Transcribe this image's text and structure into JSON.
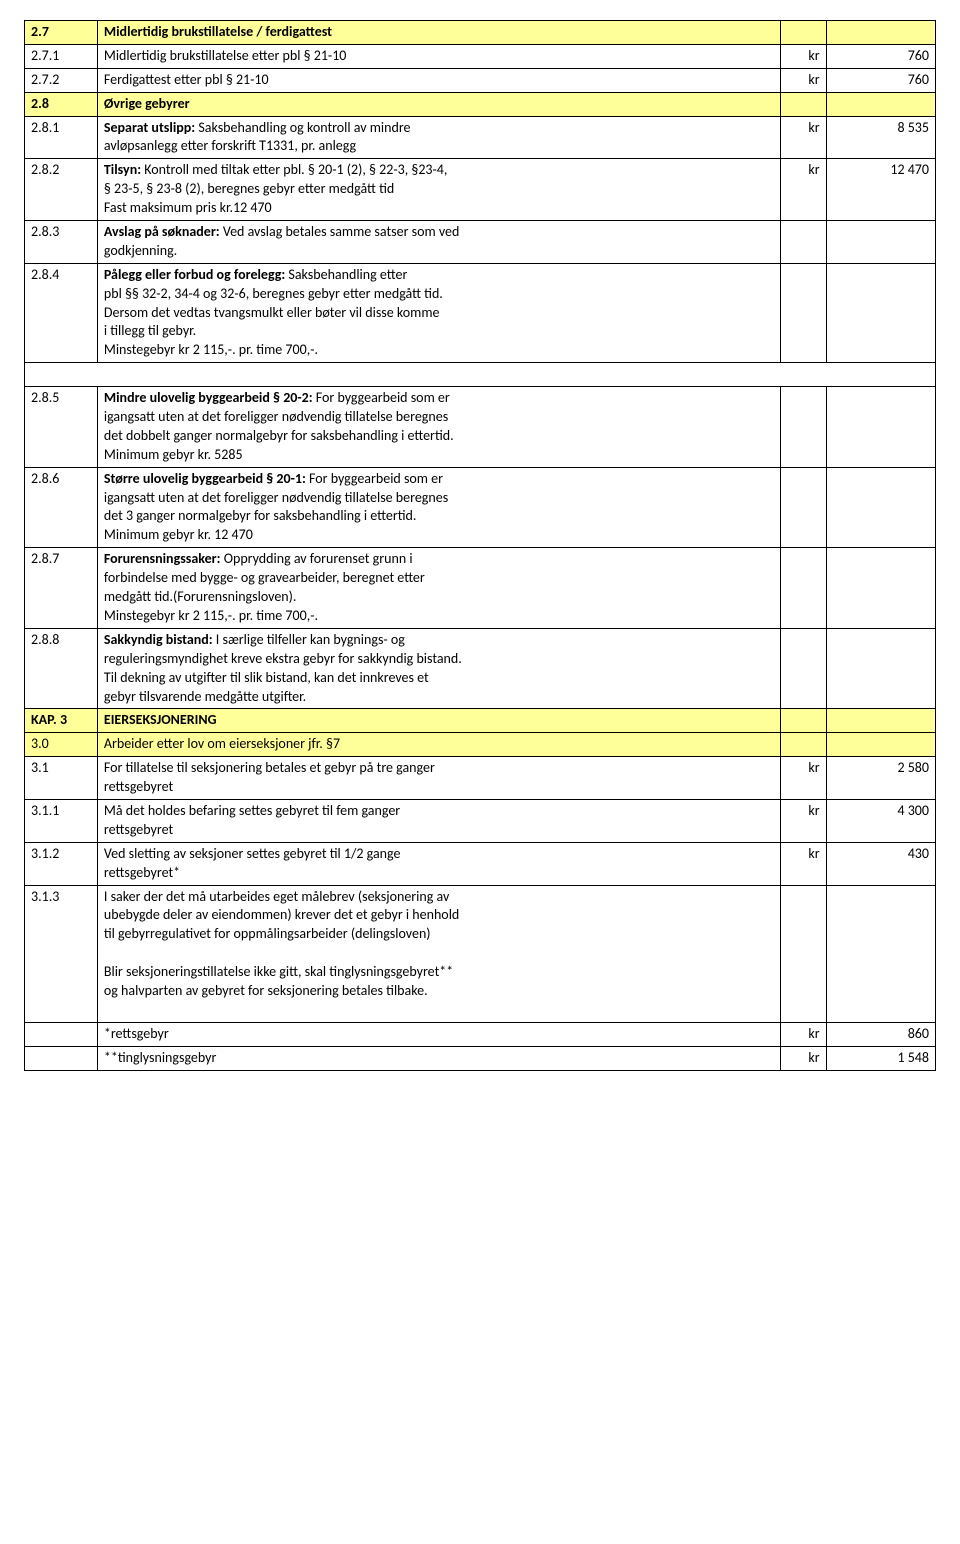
{
  "colors": {
    "highlight": "#ffff99",
    "border": "#000000",
    "text": "#000000",
    "bg": "#ffffff"
  },
  "typography": {
    "font_family": "Calibri, Arial, sans-serif",
    "font_size_pt": 11,
    "line_height": 1.35
  },
  "table": {
    "column_widths_pct": [
      8,
      75,
      5,
      12
    ],
    "rows": [
      {
        "id": "2.7",
        "desc_lines": [
          "Midlertidig brukstillatelse / ferdigattest"
        ],
        "cur": "",
        "val": "",
        "bold": true,
        "highlight": true
      },
      {
        "id": "2.7.1",
        "desc_lines": [
          "Midlertidig brukstillatelse etter pbl § 21-10"
        ],
        "cur": "kr",
        "val": "760"
      },
      {
        "id": "2.7.2",
        "desc_lines": [
          "Ferdigattest etter pbl § 21-10"
        ],
        "cur": "kr",
        "val": "760"
      },
      {
        "id": "2.8",
        "desc_lines": [
          "Øvrige gebyrer"
        ],
        "cur": "",
        "val": "",
        "bold": true,
        "highlight": true
      },
      {
        "id": "2.8.1",
        "desc_lines": [
          "<b>Separat utslipp:</b> Saksbehandling og kontroll av mindre",
          "avløpsanlegg etter forskrift T1331, pr. anlegg"
        ],
        "cur": "kr",
        "val": "8 535"
      },
      {
        "id": "2.8.2",
        "desc_lines": [
          "<b>Tilsyn:</b> Kontroll med tiltak etter pbl. § 20-1 (2), § 22-3, §23-4,",
          "§ 23-5, § 23-8 (2), beregnes gebyr etter medgått tid",
          "Fast maksimum pris kr.12 470"
        ],
        "cur": "kr",
        "val": "12 470"
      },
      {
        "id": "2.8.3",
        "desc_lines": [
          "<b>Avslag på søknader:</b> Ved avslag betales samme satser som ved",
          "godkjenning."
        ],
        "cur": "",
        "val": ""
      },
      {
        "id": "2.8.4",
        "desc_lines": [
          "<b>Pålegg eller forbud og forelegg:</b> Saksbehandling etter",
          "pbl §§ 32-2, 34-4 og 32-6, beregnes gebyr etter medgått tid.",
          "Dersom det vedtas tvangsmulkt eller bøter vil disse komme",
          "i tillegg til gebyr.",
          "Minstegebyr kr 2 115,-. pr. time 700,-."
        ],
        "cur": "",
        "val": "",
        "gap_after": true
      },
      {
        "id": "2.8.5",
        "desc_lines": [
          "<b>Mindre ulovelig byggearbeid § 20-2:</b> For byggearbeid som er",
          "igangsatt uten at det foreligger nødvendig tillatelse beregnes",
          "det dobbelt ganger normalgebyr for saksbehandling i ettertid.",
          "Minimum gebyr kr. 5285"
        ],
        "cur": "",
        "val": ""
      },
      {
        "id": "2.8.6",
        "desc_lines": [
          "<b>Større ulovelig byggearbeid § 20-1:</b> For byggearbeid som er",
          "igangsatt uten at det foreligger nødvendig tillatelse beregnes",
          "det 3 ganger normalgebyr for saksbehandling i ettertid.",
          "Minimum gebyr kr. 12 470"
        ],
        "cur": "",
        "val": ""
      },
      {
        "id": "2.8.7",
        "desc_lines": [
          "<b>Forurensningssaker:</b> Opprydding av forurenset grunn i",
          "forbindelse med bygge- og gravearbeider, beregnet etter",
          "medgått tid.(Forurensningsloven).",
          "Minstegebyr kr 2 115,-. pr. time 700,-."
        ],
        "cur": "",
        "val": ""
      },
      {
        "id": "2.8.8",
        "desc_lines": [
          "<b>Sakkyndig bistand:</b> I særlige tilfeller kan bygnings- og",
          "reguleringsmyndighet kreve ekstra gebyr for sakkyndig bistand.",
          "Til dekning av utgifter til slik bistand, kan det innkreves et",
          "gebyr tilsvarende medgåtte utgifter."
        ],
        "cur": "",
        "val": ""
      },
      {
        "id": "KAP. 3",
        "desc_lines": [
          "EIERSEKSJONERING"
        ],
        "cur": "",
        "val": "",
        "bold": true,
        "highlight": true
      },
      {
        "id": "3.0",
        "desc_lines": [
          "Arbeider etter lov om eierseksjoner  jfr. §7"
        ],
        "cur": "",
        "val": "",
        "highlight": true
      },
      {
        "id": "3.1",
        "desc_lines": [
          "For tillatelse til seksjonering betales et gebyr på tre ganger",
          "rettsgebyret"
        ],
        "cur": "kr",
        "val": "2 580"
      },
      {
        "id": "3.1.1",
        "desc_lines": [
          "Må det holdes befaring settes gebyret til fem ganger",
          "rettsgebyret"
        ],
        "cur": "kr",
        "val": "4 300"
      },
      {
        "id": "3.1.2",
        "desc_lines": [
          "Ved sletting av seksjoner settes gebyret til 1/2 gange",
          "rettsgebyret*"
        ],
        "cur": "kr",
        "val": "430"
      },
      {
        "id": "3.1.3",
        "desc_lines": [
          "I saker der det må utarbeides eget målebrev (seksjonering av",
          "ubebygde deler av eiendommen) krever det et gebyr i henhold",
          "til gebyrregulativet for oppmålingsarbeider (delingsloven)",
          "",
          "Blir seksjoneringstillatelse ikke gitt, skal tinglysningsgebyret**",
          "og halvparten av gebyret for seksjonering betales tilbake.",
          ""
        ],
        "cur": "",
        "val": "",
        "footer": [
          {
            "label": "*rettsgebyr",
            "cur": "kr",
            "val": "860"
          },
          {
            "label": "**tinglysningsgebyr",
            "cur": "kr",
            "val": "1 548"
          }
        ]
      }
    ]
  }
}
